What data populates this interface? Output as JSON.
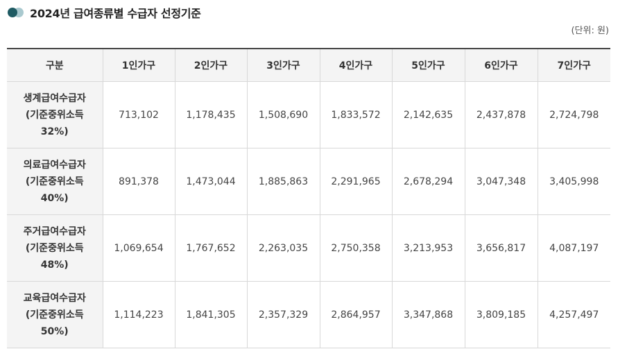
{
  "header": {
    "title": "2024년 급여종류별 수급자 선정기준",
    "unit": "(단위: 원)",
    "accent_colors": {
      "dot_primary": "#1f5b63",
      "dot_secondary": "#a9c9cf"
    }
  },
  "table": {
    "columns": [
      "구분",
      "1인가구",
      "2인가구",
      "3인가구",
      "4인가구",
      "5인가구",
      "6인가구",
      "7인가구"
    ],
    "rows": [
      {
        "label_line1": "생계급여수급자",
        "label_line2": "(기준중위소득",
        "label_line3": "32%)",
        "values": [
          "713,102",
          "1,178,435",
          "1,508,690",
          "1,833,572",
          "2,142,635",
          "2,437,878",
          "2,724,798"
        ]
      },
      {
        "label_line1": "의료급여수급자",
        "label_line2": "(기준중위소득",
        "label_line3": "40%)",
        "values": [
          "891,378",
          "1,473,044",
          "1,885,863",
          "2,291,965",
          "2,678,294",
          "3,047,348",
          "3,405,998"
        ]
      },
      {
        "label_line1": "주거급여수급자",
        "label_line2": "(기준중위소득",
        "label_line3": "48%)",
        "values": [
          "1,069,654",
          "1,767,652",
          "2,263,035",
          "2,750,358",
          "3,213,953",
          "3,656,817",
          "4,087,197"
        ]
      },
      {
        "label_line1": "교육급여수급자",
        "label_line2": "(기준중위소득",
        "label_line3": "50%)",
        "values": [
          "1,114,223",
          "1,841,305",
          "2,357,329",
          "2,864,957",
          "3,347,868",
          "3,809,185",
          "4,257,497"
        ]
      }
    ]
  }
}
